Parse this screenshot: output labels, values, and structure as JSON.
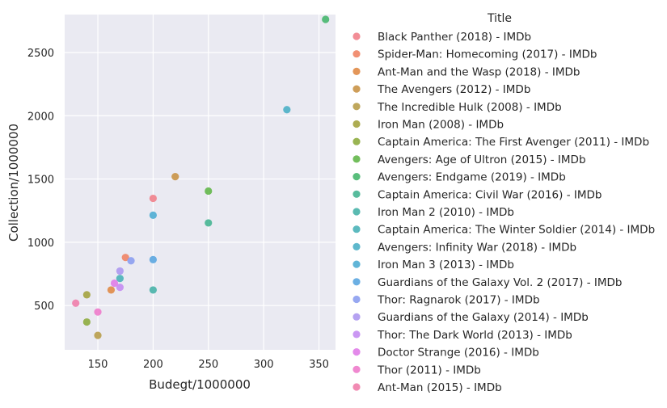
{
  "chart_data": {
    "type": "scatter",
    "xlabel": "Budegt/1000000",
    "ylabel": "Collection/1000000",
    "xlim": [
      120,
      365
    ],
    "ylim": [
      150,
      2800
    ],
    "x_ticks": [
      150,
      200,
      250,
      300,
      350
    ],
    "y_ticks": [
      500,
      1000,
      1500,
      2000,
      2500
    ],
    "grid": true,
    "legend_placement": "right",
    "legend_title": "Title",
    "series": [
      {
        "name": "Black Panther (2018) - IMDb",
        "color": "#f1818b",
        "points": [
          [
            200,
            1347
          ]
        ]
      },
      {
        "name": "Spider-Man: Homecoming (2017) - IMDb",
        "color": "#ef8465",
        "points": [
          [
            175,
            880
          ]
        ]
      },
      {
        "name": "Ant-Man and the Wasp (2018) - IMDb",
        "color": "#e08b47",
        "points": [
          [
            162,
            623
          ]
        ]
      },
      {
        "name": "The Avengers (2012) - IMDb",
        "color": "#c99447",
        "points": [
          [
            220,
            1519
          ]
        ]
      },
      {
        "name": "The Incredible Hulk (2008) - IMDb",
        "color": "#b89d4a",
        "points": [
          [
            150,
            264
          ]
        ]
      },
      {
        "name": "Iron Man (2008) - IMDb",
        "color": "#a4a33f",
        "points": [
          [
            140,
            585
          ]
        ]
      },
      {
        "name": "Captain America: The First Avenger (2011) - IMDb",
        "color": "#8eac3f",
        "points": [
          [
            140,
            370
          ]
        ]
      },
      {
        "name": "Avengers: Age of Ultron (2015) - IMDb",
        "color": "#63b74a",
        "points": [
          [
            250,
            1405
          ]
        ]
      },
      {
        "name": "Avengers: Endgame (2019) - IMDb",
        "color": "#47b76e",
        "points": [
          [
            356,
            2798
          ]
        ]
      },
      {
        "name": "Captain America: Civil War (2016) - IMDb",
        "color": "#46b592",
        "points": [
          [
            250,
            1153
          ]
        ]
      },
      {
        "name": "Iron Man 2 (2010) - IMDb",
        "color": "#48b3a8",
        "points": [
          [
            200,
            623
          ]
        ]
      },
      {
        "name": "Captain America: The Winter Soldier (2014) - IMDb",
        "color": "#4ab2b8",
        "points": [
          [
            170,
            714
          ]
        ]
      },
      {
        "name": "Avengers: Infinity War (2018) - IMDb",
        "color": "#4cb0c6",
        "points": [
          [
            321,
            2048
          ]
        ]
      },
      {
        "name": "Iron Man 3 (2013) - IMDb",
        "color": "#4fadd3",
        "points": [
          [
            200,
            1214
          ]
        ]
      },
      {
        "name": "Guardians of the Galaxy Vol. 2 (2017) - IMDb",
        "color": "#5ba6e0",
        "points": [
          [
            200,
            863
          ]
        ]
      },
      {
        "name": "Thor: Ragnarok (2017) - IMDb",
        "color": "#8c9ff0",
        "points": [
          [
            180,
            854
          ]
        ]
      },
      {
        "name": "Guardians of the Galaxy (2014) - IMDb",
        "color": "#ad98f0",
        "points": [
          [
            170,
            773
          ]
        ]
      },
      {
        "name": "Thor: The Dark World (2013) - IMDb",
        "color": "#c48cf2",
        "points": [
          [
            170,
            644
          ]
        ]
      },
      {
        "name": "Doctor Strange (2016) - IMDb",
        "color": "#e07ce8",
        "points": [
          [
            165,
            677
          ]
        ]
      },
      {
        "name": "Thor (2011) - IMDb",
        "color": "#ee7bcb",
        "points": [
          [
            150,
            449
          ]
        ]
      },
      {
        "name": "Ant-Man (2015) - IMDb",
        "color": "#f07eab",
        "points": [
          [
            130,
            519
          ]
        ]
      }
    ]
  }
}
